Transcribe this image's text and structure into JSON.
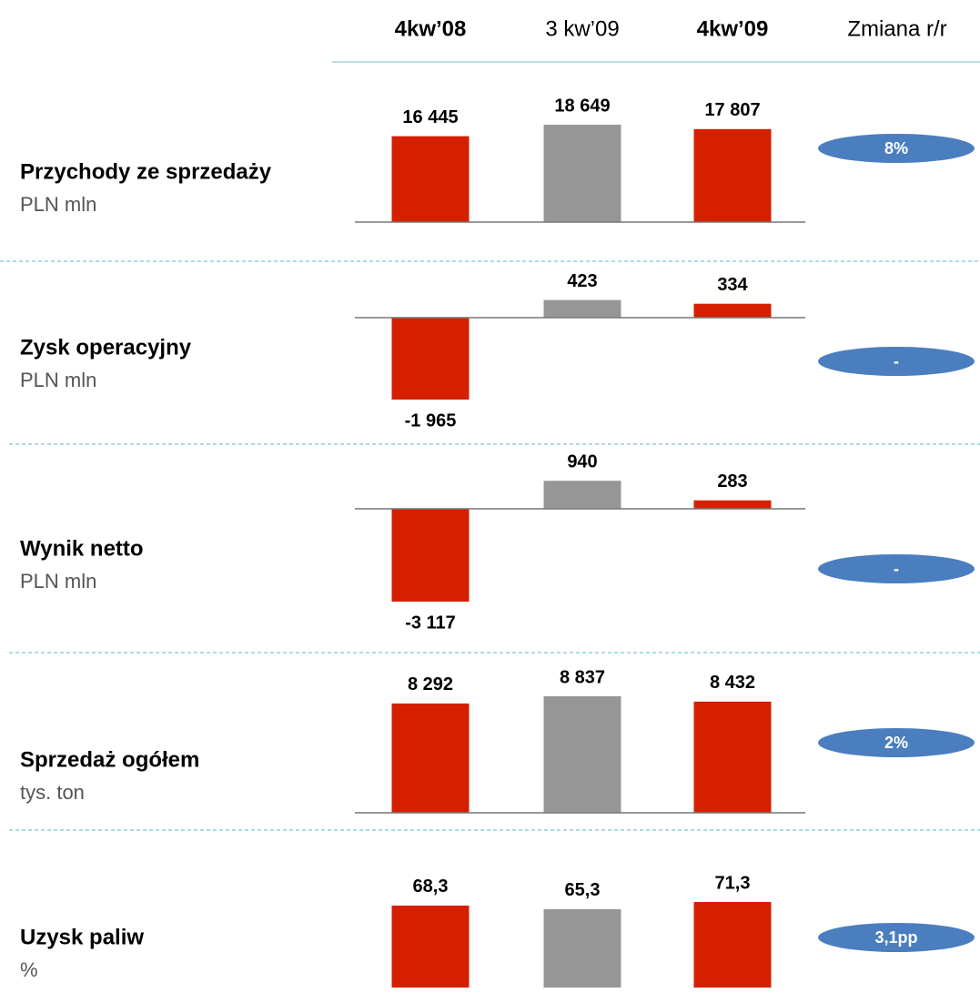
{
  "header": {
    "categories": [
      "4kw’08",
      "3 kw’09",
      "4kw’09"
    ],
    "change_label": "Zmiana r/r"
  },
  "colors": [
    "#d52000",
    "#969696",
    "#d52000"
  ],
  "change_color": "#4a7ebf",
  "chart_data": [
    {
      "type": "bar",
      "title": "Przychody ze sprzedaży",
      "subtitle": "PLN mln",
      "values": [
        16445,
        18649,
        17807
      ],
      "value_labels": [
        "16 445",
        "18 649",
        "17 807"
      ],
      "change": "8%"
    },
    {
      "type": "bar",
      "title": "Zysk operacyjny",
      "subtitle": "PLN mln",
      "values": [
        -1965,
        423,
        334
      ],
      "value_labels": [
        "-1 965",
        "423",
        "334"
      ],
      "change": "-"
    },
    {
      "type": "bar",
      "title": "Wynik netto",
      "subtitle": "PLN mln",
      "values": [
        -3117,
        940,
        283
      ],
      "value_labels": [
        "-3 117",
        "940",
        "283"
      ],
      "change": "-"
    },
    {
      "type": "bar",
      "title": "Sprzedaż ogółem",
      "subtitle": "tys. ton",
      "values": [
        8292,
        8837,
        8432
      ],
      "value_labels": [
        "8 292",
        "8 837",
        "8 432"
      ],
      "change": "2%"
    },
    {
      "type": "bar",
      "title": "Uzysk paliw",
      "subtitle": "%",
      "values": [
        68.3,
        65.3,
        71.3
      ],
      "value_labels": [
        "68,3",
        "65,3",
        "71,3"
      ],
      "change": "3,1pp"
    }
  ]
}
